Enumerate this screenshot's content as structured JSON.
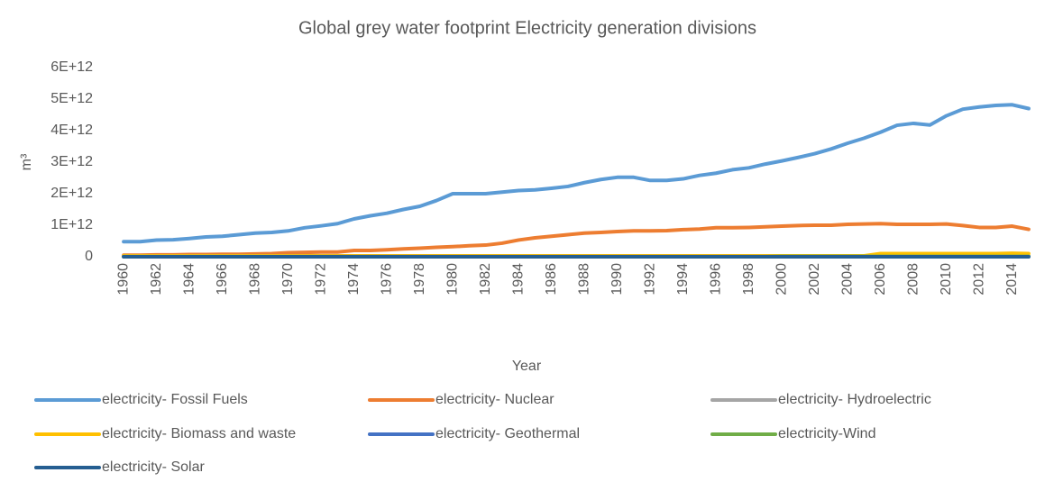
{
  "chart_data": {
    "type": "line",
    "title": "Global grey water footprint Electricity generation divisions",
    "x_label": "Year",
    "y_label": "m³",
    "categories": [
      "1960",
      null,
      "1962",
      null,
      "1964",
      null,
      "1966",
      null,
      "1968",
      null,
      "1970",
      null,
      "1972",
      null,
      "1974",
      null,
      "1976",
      null,
      "1978",
      null,
      "1980",
      null,
      "1982",
      null,
      "1984",
      null,
      "1986",
      null,
      "1988",
      null,
      "1990",
      null,
      "1992",
      null,
      "1994",
      null,
      "1996",
      null,
      "1998",
      null,
      "2000",
      null,
      "2002",
      null,
      "2004",
      null,
      "2006",
      null,
      "2008",
      null,
      "2010",
      null,
      "2012",
      null,
      "2014",
      null
    ],
    "ylim": [
      0,
      6000000000000.0
    ],
    "yticks": [
      0,
      {
        "value": 1000000000000.0,
        "label": "1E+12"
      },
      {
        "value": 2000000000000.0,
        "label": "2E+12"
      },
      {
        "value": 3000000000000.0,
        "label": "3E+12"
      },
      {
        "value": 4000000000000.0,
        "label": "4E+12"
      },
      {
        "value": 5000000000000.0,
        "label": "5E+12"
      },
      {
        "value": 6000000000000.0,
        "label": "6E+12"
      }
    ],
    "grid": false,
    "legend": "bottom",
    "series": [
      {
        "name": "electricity- Fossil Fuels",
        "color": "#5b9bd5",
        "values": [
          480000000000.0,
          480000000000.0,
          530000000000.0,
          540000000000.0,
          580000000000.0,
          630000000000.0,
          650000000000.0,
          700000000000.0,
          750000000000.0,
          770000000000.0,
          820000000000.0,
          920000000000.0,
          980000000000.0,
          1050000000000.0,
          1200000000000.0,
          1300000000000.0,
          1380000000000.0,
          1500000000000.0,
          1600000000000.0,
          1780000000000.0,
          2000000000000.0,
          2000000000000.0,
          2000000000000.0,
          2050000000000.0,
          2100000000000.0,
          2120000000000.0,
          2170000000000.0,
          2230000000000.0,
          2350000000000.0,
          2450000000000.0,
          2520000000000.0,
          2520000000000.0,
          2420000000000.0,
          2420000000000.0,
          2470000000000.0,
          2580000000000.0,
          2650000000000.0,
          2760000000000.0,
          2820000000000.0,
          2940000000000.0,
          3040000000000.0,
          3150000000000.0,
          3270000000000.0,
          3420000000000.0,
          3600000000000.0,
          3760000000000.0,
          3950000000000.0,
          4170000000000.0,
          4230000000000.0,
          4180000000000.0,
          4470000000000.0,
          4680000000000.0,
          4750000000000.0,
          4800000000000.0,
          4820000000000.0,
          4700000000000.0
        ]
      },
      {
        "name": "electricity- Nuclear",
        "color": "#ed7d31",
        "values": [
          50000000000.0,
          50000000000.0,
          60000000000.0,
          60000000000.0,
          70000000000.0,
          70000000000.0,
          80000000000.0,
          80000000000.0,
          90000000000.0,
          100000000000.0,
          130000000000.0,
          140000000000.0,
          150000000000.0,
          150000000000.0,
          200000000000.0,
          200000000000.0,
          220000000000.0,
          250000000000.0,
          270000000000.0,
          300000000000.0,
          320000000000.0,
          350000000000.0,
          370000000000.0,
          430000000000.0,
          530000000000.0,
          600000000000.0,
          650000000000.0,
          700000000000.0,
          750000000000.0,
          770000000000.0,
          800000000000.0,
          820000000000.0,
          820000000000.0,
          830000000000.0,
          860000000000.0,
          880000000000.0,
          920000000000.0,
          920000000000.0,
          930000000000.0,
          950000000000.0,
          970000000000.0,
          990000000000.0,
          1000000000000.0,
          1000000000000.0,
          1030000000000.0,
          1040000000000.0,
          1050000000000.0,
          1030000000000.0,
          1030000000000.0,
          1030000000000.0,
          1040000000000.0,
          990000000000.0,
          930000000000.0,
          930000000000.0,
          970000000000.0,
          870000000000.0
        ]
      },
      {
        "name": "electricity- Hydroelectric",
        "color": "#a5a5a5",
        "values": [
          20000000000.0,
          20000000000.0,
          20000000000.0,
          20000000000.0,
          20000000000.0,
          20000000000.0,
          20000000000.0,
          20000000000.0,
          20000000000.0,
          20000000000.0,
          20000000000.0,
          20000000000.0,
          20000000000.0,
          20000000000.0,
          20000000000.0,
          20000000000.0,
          20000000000.0,
          20000000000.0,
          20000000000.0,
          20000000000.0,
          20000000000.0,
          20000000000.0,
          20000000000.0,
          20000000000.0,
          20000000000.0,
          20000000000.0,
          20000000000.0,
          20000000000.0,
          20000000000.0,
          20000000000.0,
          20000000000.0,
          20000000000.0,
          20000000000.0,
          20000000000.0,
          20000000000.0,
          20000000000.0,
          20000000000.0,
          20000000000.0,
          20000000000.0,
          20000000000.0,
          20000000000.0,
          20000000000.0,
          20000000000.0,
          20000000000.0,
          20000000000.0,
          20000000000.0,
          20000000000.0,
          20000000000.0,
          20000000000.0,
          20000000000.0,
          20000000000.0,
          20000000000.0,
          20000000000.0,
          20000000000.0,
          20000000000.0,
          20000000000.0
        ]
      },
      {
        "name": "electricity- Biomass and waste",
        "color": "#ffc000",
        "values": [
          30000000000.0,
          30000000000.0,
          30000000000.0,
          30000000000.0,
          30000000000.0,
          30000000000.0,
          30000000000.0,
          30000000000.0,
          30000000000.0,
          30000000000.0,
          30000000000.0,
          30000000000.0,
          30000000000.0,
          30000000000.0,
          30000000000.0,
          30000000000.0,
          30000000000.0,
          30000000000.0,
          30000000000.0,
          30000000000.0,
          30000000000.0,
          30000000000.0,
          30000000000.0,
          30000000000.0,
          30000000000.0,
          30000000000.0,
          30000000000.0,
          30000000000.0,
          30000000000.0,
          30000000000.0,
          30000000000.0,
          30000000000.0,
          30000000000.0,
          30000000000.0,
          30000000000.0,
          30000000000.0,
          30000000000.0,
          30000000000.0,
          30000000000.0,
          30000000000.0,
          30000000000.0,
          30000000000.0,
          30000000000.0,
          30000000000.0,
          30000000000.0,
          30000000000.0,
          100000000000.0,
          100000000000.0,
          100000000000.0,
          100000000000.0,
          100000000000.0,
          100000000000.0,
          100000000000.0,
          100000000000.0,
          110000000000.0,
          100000000000.0
        ]
      },
      {
        "name": "electricity- Geothermal",
        "color": "#4472c4",
        "values": [
          5000000000.0,
          5000000000.0,
          5000000000.0,
          5000000000.0,
          5000000000.0,
          5000000000.0,
          5000000000.0,
          5000000000.0,
          5000000000.0,
          5000000000.0,
          5000000000.0,
          5000000000.0,
          5000000000.0,
          5000000000.0,
          5000000000.0,
          5000000000.0,
          5000000000.0,
          5000000000.0,
          5000000000.0,
          5000000000.0,
          5000000000.0,
          5000000000.0,
          5000000000.0,
          5000000000.0,
          5000000000.0,
          5000000000.0,
          5000000000.0,
          5000000000.0,
          5000000000.0,
          5000000000.0,
          5000000000.0,
          5000000000.0,
          5000000000.0,
          5000000000.0,
          5000000000.0,
          5000000000.0,
          5000000000.0,
          5000000000.0,
          5000000000.0,
          5000000000.0,
          5000000000.0,
          5000000000.0,
          5000000000.0,
          5000000000.0,
          5000000000.0,
          5000000000.0,
          5000000000.0,
          5000000000.0,
          5000000000.0,
          5000000000.0,
          5000000000.0,
          5000000000.0,
          5000000000.0,
          5000000000.0,
          5000000000.0,
          5000000000.0
        ]
      },
      {
        "name": "electricity-Wind",
        "color": "#70ad47",
        "values": [
          0,
          0,
          0,
          0,
          0,
          0,
          0,
          0,
          0,
          0,
          0,
          0,
          0,
          0,
          0,
          0,
          0,
          0,
          0,
          0,
          0,
          0,
          0,
          0,
          0,
          0,
          0,
          0,
          0,
          0,
          0,
          0,
          0,
          0,
          0,
          0,
          0,
          0,
          0,
          0,
          10000000000.0,
          10000000000.0,
          10000000000.0,
          10000000000.0,
          10000000000.0,
          10000000000.0,
          10000000000.0,
          10000000000.0,
          10000000000.0,
          10000000000.0,
          10000000000.0,
          10000000000.0,
          10000000000.0,
          10000000000.0,
          10000000000.0,
          10000000000.0
        ]
      },
      {
        "name": "electricity- Solar",
        "color": "#255e91",
        "values": [
          0,
          0,
          0,
          0,
          0,
          0,
          0,
          0,
          0,
          0,
          0,
          0,
          0,
          0,
          0,
          0,
          0,
          0,
          0,
          0,
          0,
          0,
          0,
          0,
          0,
          0,
          0,
          0,
          0,
          0,
          0,
          0,
          0,
          0,
          0,
          0,
          0,
          0,
          0,
          0,
          0,
          0,
          0,
          0,
          0,
          0,
          0,
          0,
          0,
          0,
          0,
          0,
          0,
          0,
          0,
          0
        ]
      }
    ]
  }
}
